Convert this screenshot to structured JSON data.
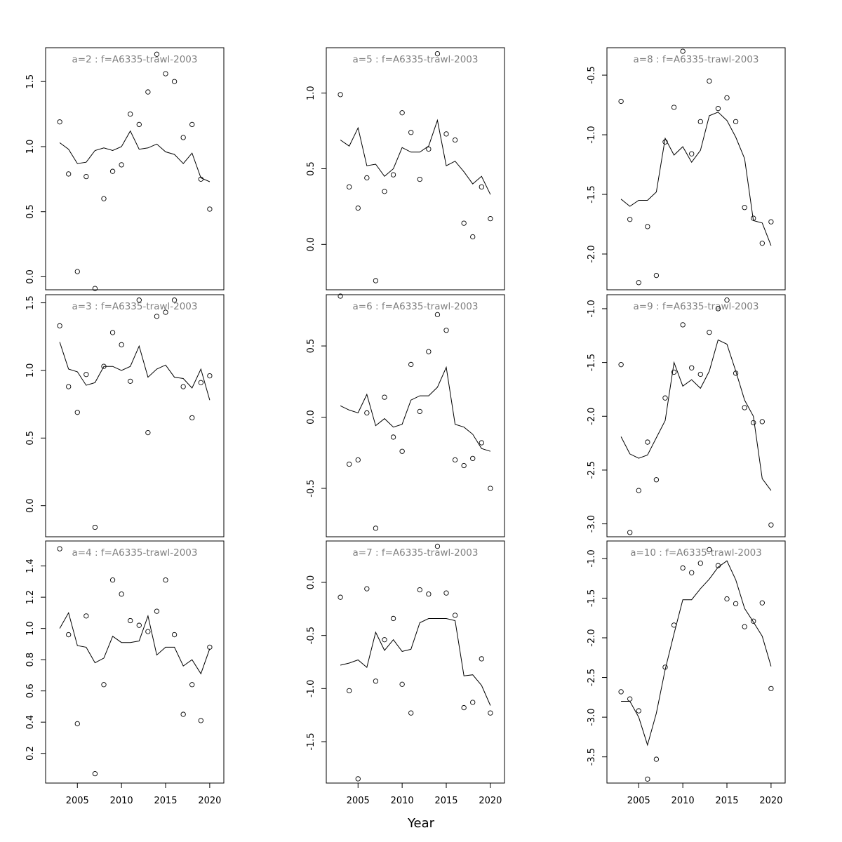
{
  "figure": {
    "xlabel": "Year"
  },
  "chart_data": [
    {
      "type": "scatter",
      "title": "a=2  :  f=A6335-trawl-2003",
      "xlim": [
        2001.4,
        2021.6
      ],
      "ylim": [
        -0.1,
        1.76
      ],
      "yticks": [
        0.0,
        0.5,
        1.0,
        1.5
      ],
      "ytick_labels": [
        "0.0",
        "0.5",
        "1.0",
        "1.5"
      ],
      "x": [
        2003,
        2004,
        2005,
        2006,
        2007,
        2008,
        2009,
        2010,
        2011,
        2012,
        2013,
        2014,
        2015,
        2016,
        2017,
        2018,
        2019,
        2020
      ],
      "observed": [
        1.19,
        0.79,
        0.04,
        0.77,
        -0.09,
        0.6,
        0.81,
        0.86,
        1.25,
        1.17,
        1.42,
        1.71,
        1.56,
        1.5,
        1.07,
        1.17,
        0.75,
        0.52
      ],
      "fitted": [
        1.03,
        0.98,
        0.87,
        0.88,
        0.97,
        0.99,
        0.97,
        1.0,
        1.12,
        0.98,
        0.99,
        1.02,
        0.96,
        0.94,
        0.87,
        0.95,
        0.76,
        0.73
      ]
    },
    {
      "type": "scatter",
      "title": "a=5  :  f=A6335-trawl-2003",
      "xlim": [
        2001.4,
        2021.6
      ],
      "ylim": [
        -0.3,
        1.3
      ],
      "yticks": [
        0.0,
        0.5,
        1.0
      ],
      "ytick_labels": [
        "0.0",
        "0.5",
        "1.0"
      ],
      "x": [
        2003,
        2004,
        2005,
        2006,
        2007,
        2008,
        2009,
        2010,
        2011,
        2012,
        2013,
        2014,
        2015,
        2016,
        2017,
        2018,
        2019,
        2020
      ],
      "observed": [
        0.99,
        0.38,
        0.24,
        0.44,
        -0.24,
        0.35,
        0.46,
        0.87,
        0.74,
        0.43,
        0.63,
        1.26,
        0.73,
        0.69,
        0.14,
        0.05,
        0.38,
        0.17
      ],
      "fitted": [
        0.69,
        0.65,
        0.77,
        0.52,
        0.53,
        0.45,
        0.5,
        0.64,
        0.61,
        0.61,
        0.65,
        0.82,
        0.52,
        0.55,
        0.48,
        0.4,
        0.45,
        0.33
      ]
    },
    {
      "type": "scatter",
      "title": "a=8  :  f=A6335-trawl-2003",
      "xlim": [
        2001.4,
        2021.6
      ],
      "ylim": [
        -2.3,
        -0.27
      ],
      "yticks": [
        -2.0,
        -1.5,
        -1.0,
        -0.5
      ],
      "ytick_labels": [
        "-2.0",
        "-1.5",
        "-1.0",
        "-0.5"
      ],
      "x": [
        2003,
        2004,
        2005,
        2006,
        2007,
        2008,
        2009,
        2010,
        2011,
        2012,
        2013,
        2014,
        2015,
        2016,
        2017,
        2018,
        2019,
        2020
      ],
      "observed": [
        -0.72,
        -1.71,
        -2.24,
        -1.77,
        -2.18,
        -1.06,
        -0.77,
        -0.3,
        -1.16,
        -0.89,
        -0.55,
        -0.78,
        -0.69,
        -0.89,
        -1.61,
        -1.7,
        -1.91,
        -1.73
      ],
      "fitted": [
        -1.54,
        -1.6,
        -1.55,
        -1.55,
        -1.48,
        -1.03,
        -1.17,
        -1.1,
        -1.23,
        -1.13,
        -0.84,
        -0.81,
        -0.88,
        -1.02,
        -1.2,
        -1.72,
        -1.74,
        -1.93
      ]
    },
    {
      "type": "scatter",
      "title": "a=3  :  f=A6335-trawl-2003",
      "xlim": [
        2001.4,
        2021.6
      ],
      "ylim": [
        -0.23,
        1.56
      ],
      "yticks": [
        0.0,
        0.5,
        1.0,
        1.5
      ],
      "ytick_labels": [
        "0.0",
        "0.5",
        "1.0",
        "1.5"
      ],
      "x": [
        2003,
        2004,
        2005,
        2006,
        2007,
        2008,
        2009,
        2010,
        2011,
        2012,
        2013,
        2014,
        2015,
        2016,
        2017,
        2018,
        2019,
        2020
      ],
      "observed": [
        1.33,
        0.88,
        0.69,
        0.97,
        -0.16,
        1.03,
        1.28,
        1.19,
        0.92,
        1.52,
        0.54,
        1.4,
        1.43,
        1.52,
        0.88,
        0.65,
        0.91,
        0.96
      ],
      "fitted": [
        1.21,
        1.01,
        0.99,
        0.89,
        0.91,
        1.03,
        1.03,
        1.0,
        1.03,
        1.18,
        0.95,
        1.01,
        1.04,
        0.95,
        0.94,
        0.87,
        1.01,
        0.78
      ]
    },
    {
      "type": "scatter",
      "title": "a=6  :  f=A6335-trawl-2003",
      "xlim": [
        2001.4,
        2021.6
      ],
      "ylim": [
        -0.84,
        0.86
      ],
      "yticks": [
        -0.5,
        0.0,
        0.5
      ],
      "ytick_labels": [
        "-0.5",
        "0.0",
        "0.5"
      ],
      "x": [
        2003,
        2004,
        2005,
        2006,
        2007,
        2008,
        2009,
        2010,
        2011,
        2012,
        2013,
        2014,
        2015,
        2016,
        2017,
        2018,
        2019,
        2020
      ],
      "observed": [
        0.85,
        -0.33,
        -0.3,
        0.03,
        -0.78,
        0.14,
        -0.14,
        -0.24,
        0.37,
        0.04,
        0.46,
        0.72,
        0.61,
        -0.3,
        -0.34,
        -0.29,
        -0.18,
        -0.5
      ],
      "fitted": [
        0.08,
        0.05,
        0.03,
        0.16,
        -0.06,
        -0.01,
        -0.07,
        -0.05,
        0.12,
        0.15,
        0.15,
        0.21,
        0.35,
        -0.05,
        -0.07,
        -0.12,
        -0.22,
        -0.24
      ]
    },
    {
      "type": "scatter",
      "title": "a=9  :  f=A6335-trawl-2003",
      "xlim": [
        2001.4,
        2021.6
      ],
      "ylim": [
        -3.12,
        -0.87
      ],
      "yticks": [
        -3.0,
        -2.5,
        -2.0,
        -1.5,
        -1.0
      ],
      "ytick_labels": [
        "-3.0",
        "-2.5",
        "-2.0",
        "-1.5",
        "-1.0"
      ],
      "x": [
        2003,
        2004,
        2005,
        2006,
        2007,
        2008,
        2009,
        2010,
        2011,
        2012,
        2013,
        2014,
        2015,
        2016,
        2017,
        2018,
        2019,
        2020
      ],
      "observed": [
        -1.52,
        -3.08,
        -2.69,
        -2.24,
        -2.59,
        -1.83,
        -1.59,
        -1.15,
        -1.55,
        -1.61,
        -1.22,
        -1.0,
        -0.92,
        -1.6,
        -1.92,
        -2.06,
        -2.05,
        -3.01
      ],
      "fitted": [
        -2.19,
        -2.35,
        -2.39,
        -2.36,
        -2.2,
        -2.04,
        -1.5,
        -1.72,
        -1.66,
        -1.74,
        -1.58,
        -1.29,
        -1.33,
        -1.58,
        -1.85,
        -2.0,
        -2.58,
        -2.69
      ]
    },
    {
      "type": "scatter",
      "title": "a=4  :  f=A6335-trawl-2003",
      "xlim": [
        2001.4,
        2021.6
      ],
      "ylim": [
        0.01,
        1.56
      ],
      "yticks": [
        0.2,
        0.4,
        0.6,
        0.8,
        1.0,
        1.2,
        1.4
      ],
      "ytick_labels": [
        "0.2",
        "0.4",
        "0.6",
        "0.8",
        "1.0",
        "1.2",
        "1.4"
      ],
      "x": [
        2003,
        2004,
        2005,
        2006,
        2007,
        2008,
        2009,
        2010,
        2011,
        2012,
        2013,
        2014,
        2015,
        2016,
        2017,
        2018,
        2019,
        2020
      ],
      "observed": [
        1.51,
        0.96,
        0.39,
        1.08,
        0.07,
        0.64,
        1.31,
        1.22,
        1.05,
        1.02,
        0.98,
        1.11,
        1.31,
        0.96,
        0.45,
        0.64,
        0.41,
        0.88
      ],
      "fitted": [
        1.0,
        1.1,
        0.89,
        0.88,
        0.78,
        0.81,
        0.95,
        0.91,
        0.91,
        0.92,
        1.08,
        0.83,
        0.88,
        0.88,
        0.76,
        0.8,
        0.71,
        0.87
      ]
    },
    {
      "type": "scatter",
      "title": "a=7  :  f=A6335-trawl-2003",
      "xlim": [
        2001.4,
        2021.6
      ],
      "ylim": [
        -1.89,
        0.39
      ],
      "yticks": [
        -1.5,
        -1.0,
        -0.5,
        0.0
      ],
      "ytick_labels": [
        "-1.5",
        "-1.0",
        "-0.5",
        "0.0"
      ],
      "x": [
        2003,
        2004,
        2005,
        2006,
        2007,
        2008,
        2009,
        2010,
        2011,
        2012,
        2013,
        2014,
        2015,
        2016,
        2017,
        2018,
        2019,
        2020
      ],
      "observed": [
        -0.14,
        -1.02,
        -1.85,
        -0.06,
        -0.93,
        -0.54,
        -0.34,
        -0.96,
        -1.23,
        -0.07,
        -0.11,
        0.34,
        -0.1,
        -0.31,
        -1.18,
        -1.13,
        -0.72,
        -1.23
      ],
      "fitted": [
        -0.78,
        -0.76,
        -0.73,
        -0.8,
        -0.47,
        -0.64,
        -0.54,
        -0.65,
        -0.63,
        -0.38,
        -0.34,
        -0.34,
        -0.34,
        -0.36,
        -0.88,
        -0.87,
        -0.97,
        -1.16
      ]
    },
    {
      "type": "scatter",
      "title": "a=10  :  f=A6335-trawl-2003",
      "xlim": [
        2001.4,
        2021.6
      ],
      "ylim": [
        -3.83,
        -0.78
      ],
      "yticks": [
        -3.5,
        -3.0,
        -2.5,
        -2.0,
        -1.5,
        -1.0
      ],
      "ytick_labels": [
        "-3.5",
        "-3.0",
        "-2.5",
        "-2.0",
        "-1.5",
        "-1.0"
      ],
      "x": [
        2003,
        2004,
        2005,
        2006,
        2007,
        2008,
        2009,
        2010,
        2011,
        2012,
        2013,
        2014,
        2015,
        2016,
        2017,
        2018,
        2019,
        2020
      ],
      "observed": [
        -2.68,
        -2.77,
        -2.92,
        -3.78,
        -3.53,
        -2.37,
        -1.84,
        -1.12,
        -1.18,
        -1.06,
        -0.89,
        -1.09,
        -1.51,
        -1.57,
        -1.86,
        -1.79,
        -1.56,
        -2.64
      ],
      "fitted": [
        -2.8,
        -2.8,
        -3.0,
        -3.35,
        -2.95,
        -2.4,
        -1.95,
        -1.52,
        -1.52,
        -1.38,
        -1.26,
        -1.11,
        -1.03,
        -1.27,
        -1.63,
        -1.8,
        -1.98,
        -2.36
      ]
    }
  ],
  "xticks": [
    2005,
    2010,
    2015,
    2020
  ],
  "xtick_labels": [
    "2005",
    "2010",
    "2015",
    "2020"
  ]
}
